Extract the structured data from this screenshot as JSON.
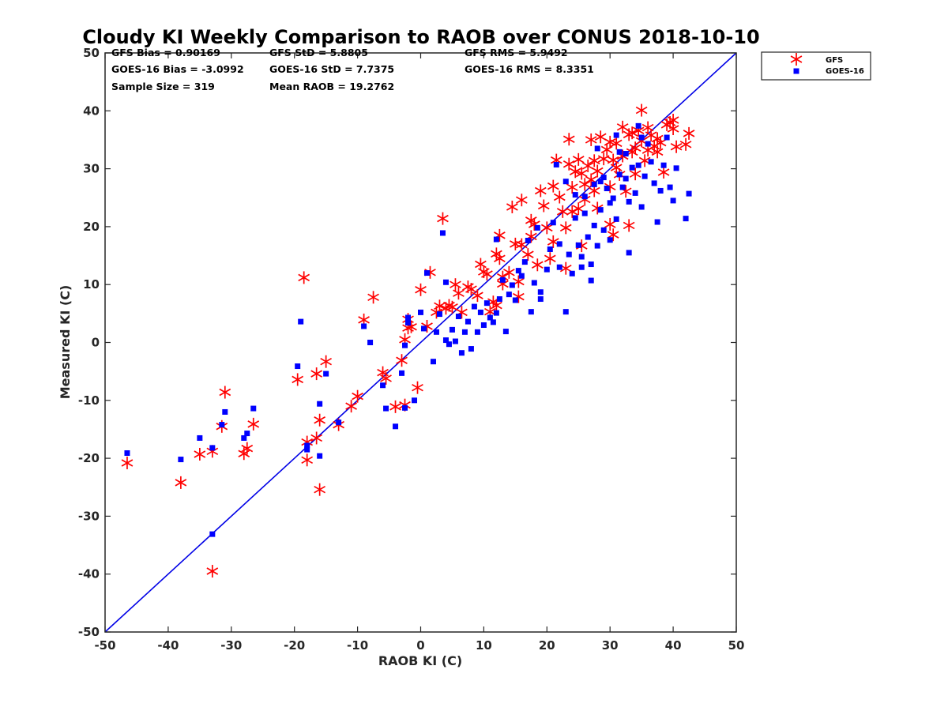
{
  "chart_data": {
    "type": "scatter",
    "title": "Cloudy KI Weekly Comparison to RAOB over CONUS 2018-10-10",
    "xlabel": "RAOB KI (C)",
    "ylabel": "Measured KI (C)",
    "xlim": [
      -50,
      50
    ],
    "ylim": [
      -50,
      50
    ],
    "xticks": [
      "-50",
      "-40",
      "-30",
      "-20",
      "-10",
      "0",
      "10",
      "20",
      "30",
      "40",
      "50"
    ],
    "yticks": [
      "50",
      "40",
      "30",
      "20",
      "10",
      "0",
      "-10",
      "-20",
      "-30",
      "-40",
      "-50"
    ],
    "grid": false,
    "legend_position": "top-right, outside axes",
    "reference_line": {
      "x": [
        -50,
        50
      ],
      "y": [
        -50,
        50
      ],
      "color": "#0000e6"
    },
    "stats": [
      {
        "key": "gfs_bias",
        "text": "GFS Bias = 0.90169"
      },
      {
        "key": "gfs_std",
        "text": "GFS StD = 5.8805"
      },
      {
        "key": "gfs_rms",
        "text": "GFS RMS = 5.9492"
      },
      {
        "key": "goes_bias",
        "text": "GOES-16 Bias = -3.0992"
      },
      {
        "key": "goes_std",
        "text": "GOES-16 StD = 7.7375"
      },
      {
        "key": "goes_rms",
        "text": "GOES-16 RMS = 8.3351"
      },
      {
        "key": "sample_size",
        "text": "Sample Size = 319"
      },
      {
        "key": "mean_raob",
        "text": "Mean RAOB = 19.2762"
      }
    ],
    "series": [
      {
        "name": "GFS",
        "marker": "asterisk",
        "color": "#ff0000",
        "points": [
          [
            -46.5,
            -20.8
          ],
          [
            -38,
            -24.2
          ],
          [
            -35,
            -19.3
          ],
          [
            -33,
            -18.8
          ],
          [
            -33,
            -39.5
          ],
          [
            -31.5,
            -14.5
          ],
          [
            -31,
            -8.6
          ],
          [
            -28,
            -19.2
          ],
          [
            -27.5,
            -18.3
          ],
          [
            -26.5,
            -14.1
          ],
          [
            -19.5,
            -6.4
          ],
          [
            -18.5,
            11.2
          ],
          [
            -18,
            -17.2
          ],
          [
            -18,
            -20.3
          ],
          [
            -16.5,
            -5.4
          ],
          [
            -16.5,
            -16.5
          ],
          [
            -16,
            -13.4
          ],
          [
            -16,
            -25.4
          ],
          [
            -15,
            -3.3
          ],
          [
            -13,
            -14.2
          ],
          [
            -11,
            -11
          ],
          [
            -10,
            -9.3
          ],
          [
            -9,
            3.9
          ],
          [
            -7.5,
            7.8
          ],
          [
            -6,
            -5.2
          ],
          [
            -5.5,
            -6.2
          ],
          [
            -4,
            -11.1
          ],
          [
            -3,
            -3.1
          ],
          [
            -2.5,
            0.5
          ],
          [
            -2.5,
            -10.8
          ],
          [
            -2,
            2.5
          ],
          [
            -2,
            4
          ],
          [
            -1.5,
            2.7
          ],
          [
            -0.5,
            -7.8
          ],
          [
            0,
            9.1
          ],
          [
            1,
            2.8
          ],
          [
            1.5,
            12.1
          ],
          [
            2.5,
            5.2
          ],
          [
            3,
            6.3
          ],
          [
            3.5,
            21.4
          ],
          [
            4,
            5.9
          ],
          [
            4.5,
            6.4
          ],
          [
            5,
            6.1
          ],
          [
            5.5,
            10
          ],
          [
            6,
            8.5
          ],
          [
            6.5,
            5.2
          ],
          [
            7.5,
            9.6
          ],
          [
            8,
            9.2
          ],
          [
            9,
            8.1
          ],
          [
            9.5,
            13.5
          ],
          [
            10,
            12.2
          ],
          [
            10.5,
            11.8
          ],
          [
            11,
            5.3
          ],
          [
            11.5,
            7
          ],
          [
            12,
            15.3
          ],
          [
            12,
            6.4
          ],
          [
            12.5,
            14.5
          ],
          [
            12.5,
            18.5
          ],
          [
            13,
            10.1
          ],
          [
            13,
            11.3
          ],
          [
            14,
            12.1
          ],
          [
            14.5,
            23.4
          ],
          [
            15,
            17
          ],
          [
            15.5,
            7.9
          ],
          [
            15.5,
            10.5
          ],
          [
            16,
            24.6
          ],
          [
            16,
            16.9
          ],
          [
            17,
            15.2
          ],
          [
            17.5,
            18.3
          ],
          [
            17.5,
            21.1
          ],
          [
            18,
            20.4
          ],
          [
            18.5,
            13.4
          ],
          [
            19,
            26.2
          ],
          [
            19.5,
            23.6
          ],
          [
            20,
            19.8
          ],
          [
            20.5,
            14.5
          ],
          [
            21,
            17.4
          ],
          [
            21,
            27
          ],
          [
            21.5,
            31.5
          ],
          [
            22,
            25.1
          ],
          [
            22.5,
            22.6
          ],
          [
            23,
            12.8
          ],
          [
            23,
            19.8
          ],
          [
            23.5,
            35.1
          ],
          [
            23.5,
            30.8
          ],
          [
            24,
            22.6
          ],
          [
            24.5,
            29.5
          ],
          [
            25,
            31.6
          ],
          [
            25,
            23.1
          ],
          [
            25.5,
            29.2
          ],
          [
            25.5,
            16.7
          ],
          [
            26,
            24.7
          ],
          [
            26.5,
            30.5
          ],
          [
            27,
            28.1
          ],
          [
            27,
            35
          ],
          [
            27.5,
            26.2
          ],
          [
            28,
            23.2
          ],
          [
            28,
            29.6
          ],
          [
            28.5,
            35.5
          ],
          [
            29,
            31.7
          ],
          [
            29.5,
            33.3
          ],
          [
            30,
            34.6
          ],
          [
            30,
            26.9
          ],
          [
            30,
            20.4
          ],
          [
            30.5,
            18.6
          ],
          [
            31,
            30.2
          ],
          [
            31,
            34.4
          ],
          [
            31.5,
            29
          ],
          [
            32,
            37.2
          ],
          [
            32,
            32.2
          ],
          [
            32.5,
            26.1
          ],
          [
            33,
            20.2
          ],
          [
            33,
            35.9
          ],
          [
            33.5,
            32.9
          ],
          [
            34,
            29.1
          ],
          [
            34,
            33.6
          ],
          [
            34.5,
            36.6
          ],
          [
            35,
            40.1
          ],
          [
            35,
            34.8
          ],
          [
            35.5,
            31.4
          ],
          [
            36,
            37.1
          ],
          [
            36,
            33.2
          ],
          [
            36.5,
            35.8
          ],
          [
            37,
            33.9
          ],
          [
            37.5,
            32.9
          ],
          [
            38,
            34.5
          ],
          [
            38.5,
            29.4
          ],
          [
            39,
            37.6
          ],
          [
            39.5,
            38
          ],
          [
            40,
            38.4
          ],
          [
            40,
            36.9
          ],
          [
            40.5,
            33.8
          ],
          [
            42,
            34.2
          ],
          [
            42.5,
            36.1
          ],
          [
            24,
            26.8
          ],
          [
            26,
            27.3
          ],
          [
            27.5,
            31.4
          ],
          [
            30.5,
            31.5
          ],
          [
            33.5,
            36.2
          ],
          [
            37.5,
            35.2
          ]
        ]
      },
      {
        "name": "GOES-16",
        "marker": "square",
        "color": "#0000ff",
        "points": [
          [
            -46.5,
            -19.1
          ],
          [
            -38,
            -20.2
          ],
          [
            -35,
            -16.5
          ],
          [
            -33,
            -18.2
          ],
          [
            -33,
            -33.1
          ],
          [
            -31.5,
            -14.2
          ],
          [
            -31,
            -12
          ],
          [
            -28,
            -16.5
          ],
          [
            -27.5,
            -15.7
          ],
          [
            -26.5,
            -11.4
          ],
          [
            -19.5,
            -4.1
          ],
          [
            -19,
            3.6
          ],
          [
            -18,
            -17.8
          ],
          [
            -18,
            -18.5
          ],
          [
            -16,
            -10.6
          ],
          [
            -16,
            -19.6
          ],
          [
            -15,
            -5.4
          ],
          [
            -13,
            -13.8
          ],
          [
            -9,
            2.8
          ],
          [
            -8,
            0
          ],
          [
            -6,
            -7.4
          ],
          [
            -5.5,
            -11.4
          ],
          [
            -4,
            -14.5
          ],
          [
            -3,
            -5.3
          ],
          [
            -2.5,
            -0.5
          ],
          [
            -2.5,
            -11.3
          ],
          [
            -2,
            3.4
          ],
          [
            -2,
            4.3
          ],
          [
            -1,
            -10
          ],
          [
            0,
            5.2
          ],
          [
            0.5,
            2.4
          ],
          [
            1,
            12
          ],
          [
            2,
            -3.3
          ],
          [
            2.5,
            1.8
          ],
          [
            3,
            4.9
          ],
          [
            3.5,
            18.9
          ],
          [
            4,
            0.4
          ],
          [
            4,
            10.4
          ],
          [
            4.5,
            -0.3
          ],
          [
            5,
            2.2
          ],
          [
            5.5,
            0.2
          ],
          [
            6,
            4.5
          ],
          [
            6.5,
            -1.8
          ],
          [
            7,
            1.8
          ],
          [
            7.5,
            3.6
          ],
          [
            8,
            -1.1
          ],
          [
            8.5,
            6.2
          ],
          [
            9,
            1.8
          ],
          [
            9.5,
            5.2
          ],
          [
            10,
            3
          ],
          [
            10.5,
            6.8
          ],
          [
            11,
            4.3
          ],
          [
            11.5,
            3.5
          ],
          [
            12,
            5.1
          ],
          [
            12,
            17.8
          ],
          [
            12.5,
            7.5
          ],
          [
            13,
            10.8
          ],
          [
            13.5,
            1.9
          ],
          [
            14,
            8.3
          ],
          [
            14.5,
            9.9
          ],
          [
            15,
            7.3
          ],
          [
            15.5,
            12.4
          ],
          [
            16,
            11.5
          ],
          [
            16.5,
            13.9
          ],
          [
            17,
            17.6
          ],
          [
            17.5,
            5.3
          ],
          [
            18,
            10.3
          ],
          [
            18.5,
            19.8
          ],
          [
            19,
            8.7
          ],
          [
            19,
            7.5
          ],
          [
            20,
            12.6
          ],
          [
            20.5,
            16.1
          ],
          [
            21,
            20.7
          ],
          [
            21.5,
            30.7
          ],
          [
            22,
            13
          ],
          [
            22,
            17
          ],
          [
            23,
            5.3
          ],
          [
            23,
            27.8
          ],
          [
            23.5,
            15.2
          ],
          [
            24,
            11.9
          ],
          [
            24.5,
            21.5
          ],
          [
            25,
            16.8
          ],
          [
            25.5,
            14.8
          ],
          [
            25.5,
            13
          ],
          [
            26,
            22.3
          ],
          [
            26.5,
            18.2
          ],
          [
            27,
            10.7
          ],
          [
            27,
            13.5
          ],
          [
            27.5,
            27.3
          ],
          [
            28,
            33.5
          ],
          [
            28,
            16.7
          ],
          [
            28.5,
            22.9
          ],
          [
            29,
            19.4
          ],
          [
            29.5,
            26.6
          ],
          [
            30,
            17.7
          ],
          [
            30.5,
            24.9
          ],
          [
            31,
            21.3
          ],
          [
            31,
            35.8
          ],
          [
            31.5,
            29
          ],
          [
            32,
            26.8
          ],
          [
            32.5,
            32.6
          ],
          [
            33,
            15.5
          ],
          [
            33,
            24.3
          ],
          [
            33.5,
            30.2
          ],
          [
            34,
            25.8
          ],
          [
            34.5,
            30.6
          ],
          [
            35,
            23.4
          ],
          [
            35,
            35.4
          ],
          [
            35.5,
            28.7
          ],
          [
            36,
            34.3
          ],
          [
            36.5,
            31.2
          ],
          [
            37,
            27.5
          ],
          [
            37.5,
            20.8
          ],
          [
            38,
            26.2
          ],
          [
            38.5,
            30.6
          ],
          [
            39,
            35.4
          ],
          [
            39.5,
            26.8
          ],
          [
            40,
            24.5
          ],
          [
            40.5,
            30.1
          ],
          [
            42,
            21.4
          ],
          [
            42.5,
            25.7
          ],
          [
            26,
            25.2
          ],
          [
            27.5,
            20.2
          ],
          [
            29,
            28.5
          ],
          [
            30,
            24.1
          ],
          [
            31.5,
            32.9
          ],
          [
            32.5,
            28.3
          ],
          [
            34.5,
            37.4
          ],
          [
            24.5,
            25.5
          ],
          [
            28.5,
            27.8
          ]
        ]
      }
    ]
  }
}
